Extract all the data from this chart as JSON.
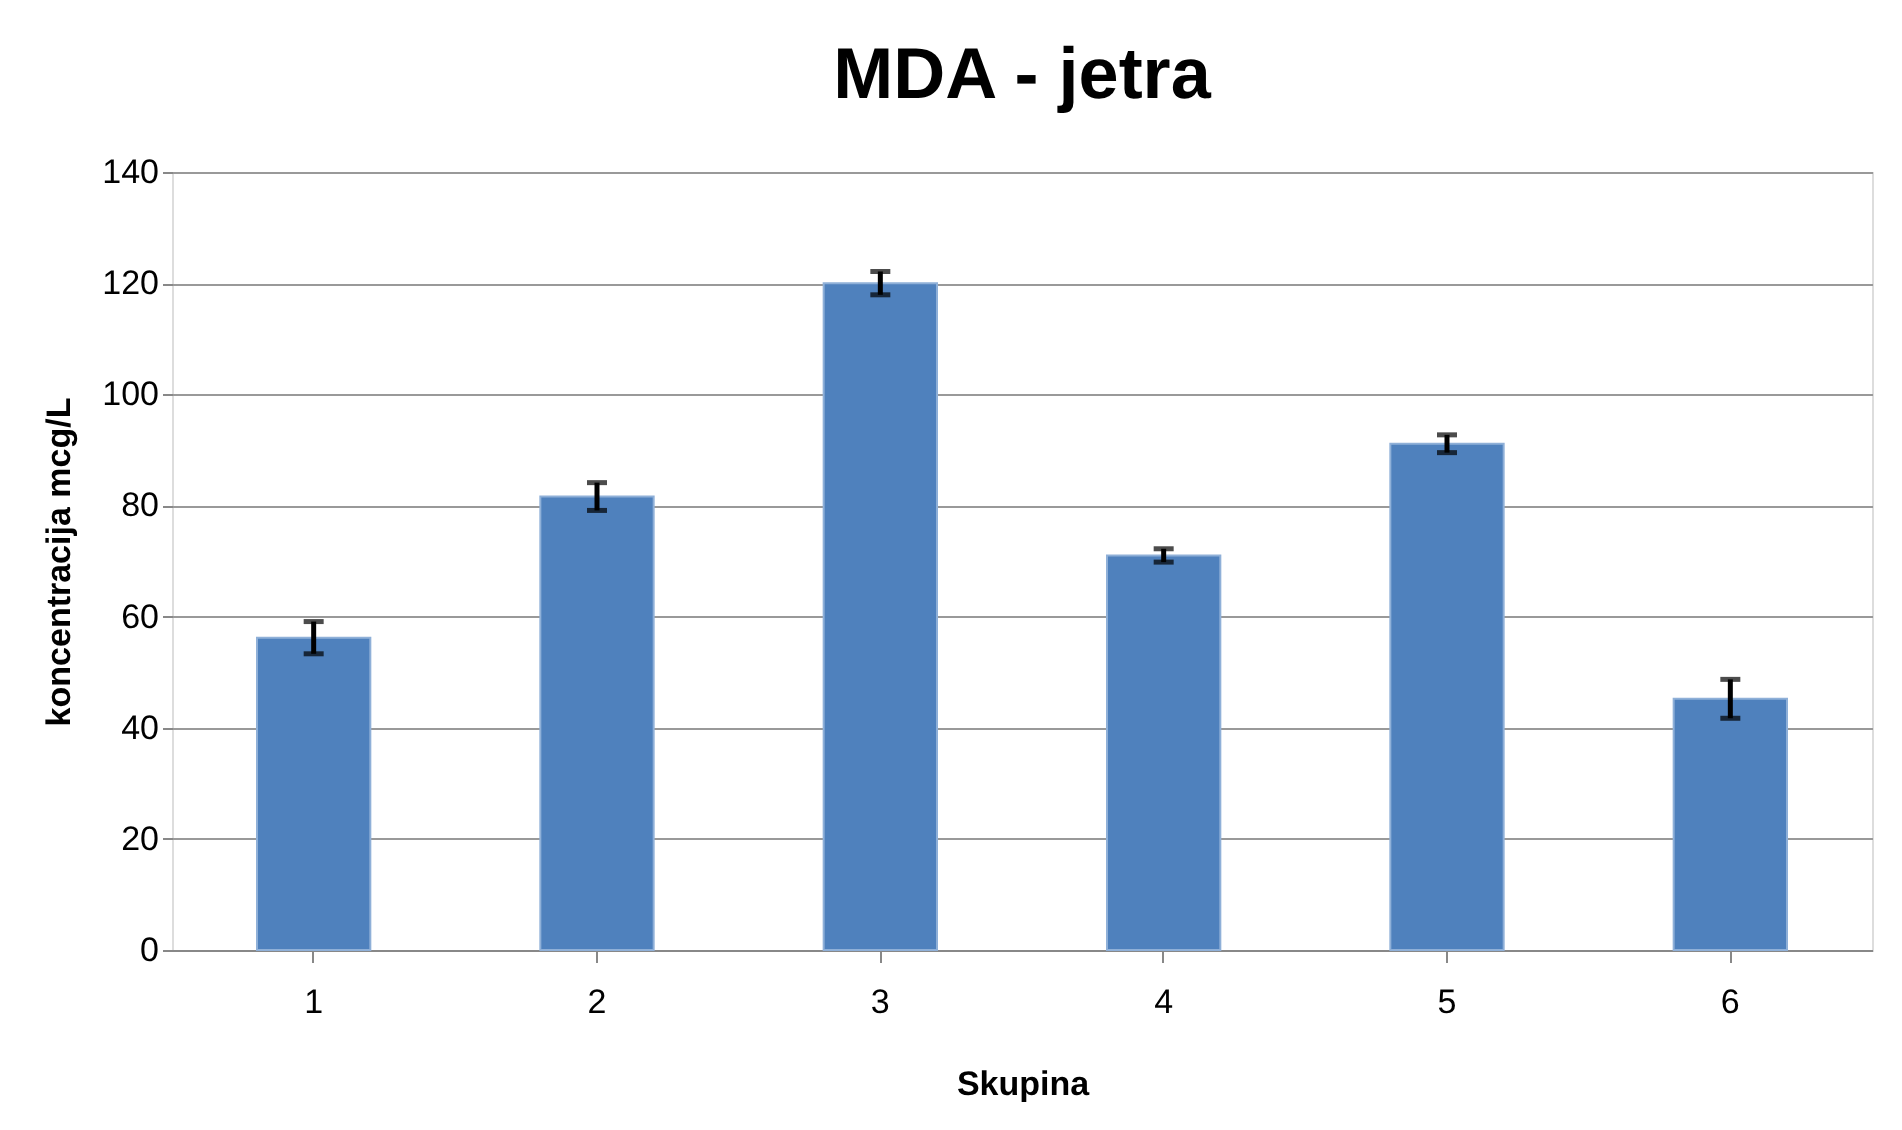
{
  "chart_data": {
    "type": "bar",
    "title": "MDA - jetra",
    "xlabel": "Skupina",
    "ylabel": "koncentracija mcg/L",
    "categories": [
      "1",
      "2",
      "3",
      "4",
      "5",
      "6"
    ],
    "values": [
      56.2,
      81.6,
      120,
      71,
      91.1,
      45.2
    ],
    "errors": [
      2.9,
      2.5,
      2.1,
      1.2,
      1.6,
      3.5
    ],
    "color": "#4f81bd",
    "ylim": [
      0,
      140
    ],
    "yticks": [
      0,
      20,
      40,
      60,
      80,
      100,
      120,
      140
    ],
    "grid": "y"
  }
}
